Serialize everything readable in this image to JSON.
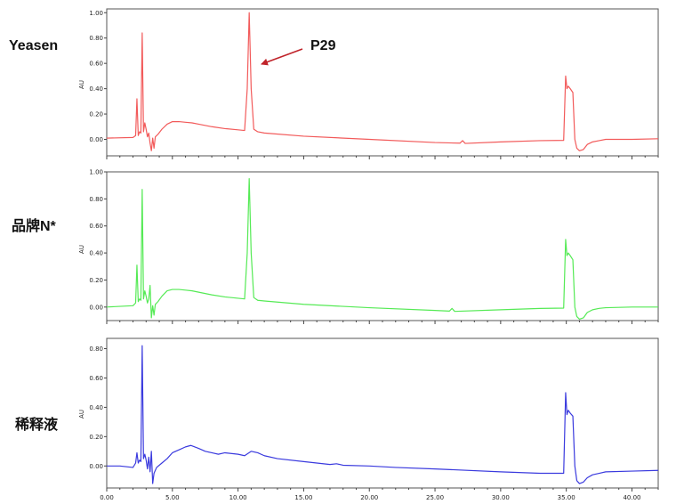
{
  "chart_data": [
    {
      "type": "line",
      "row_label": "Yeasen",
      "ylabel": "AU",
      "xlim": [
        0,
        42
      ],
      "ylim": [
        -0.13,
        1.03
      ],
      "yticks": [
        "0.00",
        "0.20",
        "0.40",
        "0.60",
        "0.80",
        "1.00"
      ],
      "series": [
        {
          "color": "#f25a5a",
          "x": [
            0.0,
            2.0,
            2.2,
            2.3,
            2.4,
            2.5,
            2.6,
            2.7,
            2.8,
            2.9,
            3.0,
            3.1,
            3.2,
            3.3,
            3.4,
            3.5,
            3.6,
            3.7,
            3.9,
            4.2,
            4.6,
            5.0,
            5.5,
            6.0,
            6.5,
            7.0,
            8.0,
            9.0,
            10.0,
            10.5,
            10.7,
            10.85,
            11.0,
            11.2,
            11.5,
            12.0,
            15.0,
            20.0,
            25.0,
            26.9,
            27.1,
            27.3,
            30.0,
            33.0,
            34.8,
            34.95,
            35.05,
            35.15,
            35.3,
            35.5,
            35.65,
            35.8,
            36.0,
            36.3,
            36.6,
            37.0,
            37.5,
            38.0,
            40.0,
            42.0
          ],
          "y": [
            0.01,
            0.015,
            0.03,
            0.32,
            0.03,
            0.06,
            0.05,
            0.84,
            0.06,
            0.13,
            0.08,
            0.02,
            0.05,
            -0.03,
            -0.09,
            0.01,
            -0.07,
            0.02,
            0.04,
            0.08,
            0.12,
            0.14,
            0.14,
            0.135,
            0.13,
            0.12,
            0.1,
            0.085,
            0.075,
            0.07,
            0.4,
            1.0,
            0.4,
            0.08,
            0.06,
            0.05,
            0.025,
            0.0,
            -0.025,
            -0.03,
            -0.01,
            -0.032,
            -0.02,
            -0.01,
            -0.008,
            0.5,
            0.4,
            0.42,
            0.4,
            0.37,
            0.0,
            -0.07,
            -0.09,
            -0.08,
            -0.04,
            -0.02,
            -0.01,
            0.0,
            0.0,
            0.005
          ]
        }
      ]
    },
    {
      "type": "line",
      "row_label": "品牌N*",
      "ylabel": "AU",
      "xlim": [
        0,
        42
      ],
      "ylim": [
        -0.1,
        1.0
      ],
      "yticks": [
        "0.00",
        "0.20",
        "0.40",
        "0.60",
        "0.80",
        "1.00"
      ],
      "series": [
        {
          "color": "#55ea55",
          "x": [
            0.0,
            2.0,
            2.2,
            2.3,
            2.4,
            2.5,
            2.6,
            2.7,
            2.8,
            2.9,
            3.0,
            3.1,
            3.2,
            3.3,
            3.4,
            3.5,
            3.6,
            3.7,
            3.9,
            4.2,
            4.6,
            5.0,
            5.5,
            6.0,
            6.5,
            7.0,
            8.0,
            9.0,
            10.0,
            10.5,
            10.7,
            10.85,
            11.0,
            11.2,
            11.5,
            12.0,
            15.0,
            20.0,
            25.0,
            26.1,
            26.3,
            26.5,
            30.0,
            33.0,
            34.8,
            34.95,
            35.05,
            35.15,
            35.3,
            35.5,
            35.65,
            35.8,
            36.0,
            36.3,
            36.6,
            37.0,
            37.5,
            38.0,
            40.0,
            42.0
          ],
          "y": [
            0.0,
            0.01,
            0.03,
            0.31,
            0.04,
            0.06,
            0.05,
            0.87,
            0.06,
            0.12,
            0.08,
            0.03,
            0.06,
            0.16,
            -0.08,
            0.01,
            -0.06,
            0.02,
            0.04,
            0.08,
            0.12,
            0.13,
            0.13,
            0.125,
            0.12,
            0.11,
            0.09,
            0.075,
            0.065,
            0.06,
            0.4,
            0.95,
            0.4,
            0.07,
            0.05,
            0.045,
            0.02,
            -0.005,
            -0.025,
            -0.03,
            -0.01,
            -0.032,
            -0.02,
            -0.01,
            -0.008,
            0.5,
            0.38,
            0.4,
            0.38,
            0.35,
            0.0,
            -0.07,
            -0.09,
            -0.08,
            -0.04,
            -0.02,
            -0.01,
            -0.005,
            0.0,
            0.0
          ]
        }
      ]
    },
    {
      "type": "line",
      "row_label": "稀释液",
      "ylabel": "AU",
      "xlim": [
        0,
        42
      ],
      "ylim": [
        -0.15,
        0.87
      ],
      "yticks": [
        "0.00",
        "0.20",
        "0.40",
        "0.60",
        "0.80"
      ],
      "xticks": [
        "0.00",
        "5.00",
        "10.00",
        "15.00",
        "20.00",
        "25.00",
        "30.00",
        "35.00",
        "40.00"
      ],
      "series": [
        {
          "color": "#3a3ade",
          "x": [
            0.0,
            1.0,
            2.0,
            2.2,
            2.3,
            2.4,
            2.5,
            2.6,
            2.7,
            2.8,
            2.9,
            3.0,
            3.1,
            3.2,
            3.3,
            3.4,
            3.5,
            3.6,
            3.8,
            4.2,
            4.6,
            5.0,
            5.5,
            6.0,
            6.4,
            7.0,
            7.5,
            8.0,
            8.5,
            9.0,
            10.0,
            10.5,
            11.0,
            11.5,
            12.0,
            13.0,
            15.0,
            17.0,
            17.5,
            18.0,
            20.0,
            22.0,
            25.0,
            30.0,
            33.0,
            34.8,
            34.95,
            35.05,
            35.15,
            35.3,
            35.5,
            35.65,
            35.8,
            36.0,
            36.3,
            36.6,
            37.0,
            37.5,
            38.0,
            40.0,
            42.0
          ],
          "y": [
            0.0,
            0.0,
            -0.01,
            0.02,
            0.09,
            0.02,
            0.04,
            0.03,
            0.82,
            0.05,
            0.08,
            0.04,
            -0.02,
            0.06,
            -0.04,
            0.1,
            -0.12,
            -0.05,
            -0.01,
            0.02,
            0.05,
            0.09,
            0.11,
            0.13,
            0.14,
            0.12,
            0.1,
            0.09,
            0.08,
            0.09,
            0.08,
            0.07,
            0.1,
            0.09,
            0.07,
            0.05,
            0.03,
            0.01,
            0.015,
            0.005,
            0.0,
            -0.01,
            -0.02,
            -0.04,
            -0.05,
            -0.05,
            0.5,
            0.35,
            0.38,
            0.36,
            0.34,
            0.0,
            -0.1,
            -0.12,
            -0.11,
            -0.08,
            -0.06,
            -0.05,
            -0.04,
            -0.035,
            -0.03
          ]
        }
      ]
    }
  ],
  "annotation": {
    "text": "P29",
    "color": "#c0232a"
  }
}
